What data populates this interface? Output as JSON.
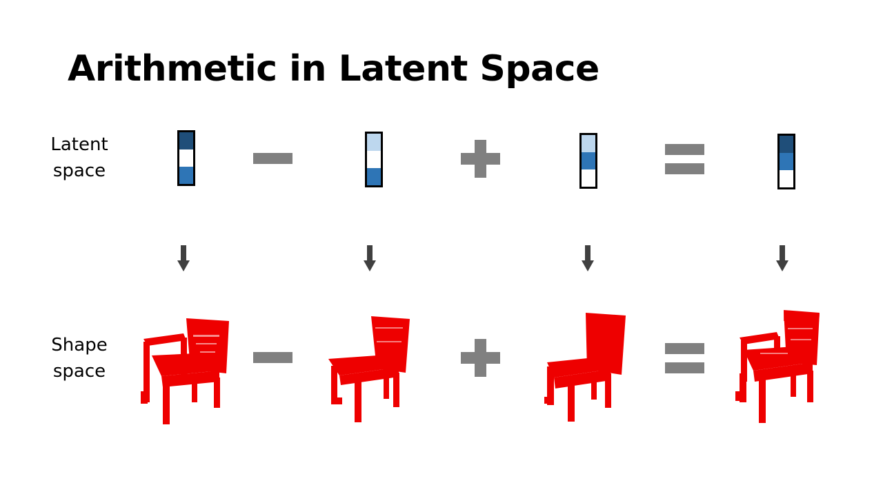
{
  "slide": {
    "title": "Arithmetic in Latent Space"
  },
  "rows": {
    "latent": {
      "line1": "Latent",
      "line2": "space"
    },
    "shape": {
      "line1": "Shape",
      "line2": "space"
    }
  },
  "operators": [
    "minus",
    "plus",
    "equals"
  ],
  "latent_vectors": [
    {
      "name": "vector-1",
      "cells": [
        "#1f4e79",
        "#ffffff",
        "#2e75b6"
      ]
    },
    {
      "name": "vector-2",
      "cells": [
        "#bdd7ee",
        "#ffffff",
        "#2e75b6"
      ]
    },
    {
      "name": "vector-3",
      "cells": [
        "#bdd7ee",
        "#2e75b6",
        "#ffffff"
      ]
    },
    {
      "name": "vector-4",
      "cells": [
        "#1f4e79",
        "#2e75b6",
        "#ffffff"
      ]
    }
  ],
  "shapes": [
    {
      "name": "armchair",
      "has_arms": true
    },
    {
      "name": "chair",
      "has_arms": false
    },
    {
      "name": "tall-chair",
      "has_arms": false
    },
    {
      "name": "result-armchair",
      "has_arms": true
    }
  ],
  "colors": {
    "operator": "#808080",
    "arrow": "#404040",
    "chair": "#ee0000",
    "vector_border": "#000000"
  }
}
